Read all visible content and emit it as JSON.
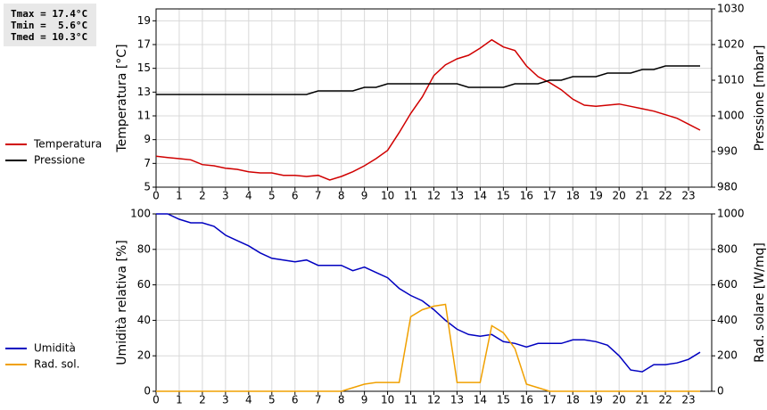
{
  "chart_data": [
    {
      "type": "line",
      "annotations": [
        "Tmax = 17.4°C",
        "Tmin =  5.6°C",
        "Tmed = 10.3°C"
      ],
      "ylabel": "Temperatura [°C]",
      "y2label": "Pressione [mbar]",
      "x": [
        0,
        0.5,
        1,
        1.5,
        2,
        2.5,
        3,
        3.5,
        4,
        4.5,
        5,
        5.5,
        6,
        6.5,
        7,
        7.5,
        8,
        8.5,
        9,
        9.5,
        10,
        10.5,
        11,
        11.5,
        12,
        12.5,
        13,
        13.5,
        14,
        14.5,
        15,
        15.5,
        16,
        16.5,
        17,
        17.5,
        18,
        18.5,
        19,
        19.5,
        20,
        20.5,
        21,
        21.5,
        22,
        22.5,
        23,
        23.5
      ],
      "xlim": [
        0,
        24
      ],
      "xticks": [
        0,
        1,
        2,
        3,
        4,
        5,
        6,
        7,
        8,
        9,
        10,
        11,
        12,
        13,
        14,
        15,
        16,
        17,
        18,
        19,
        20,
        21,
        22,
        23
      ],
      "ylim": [
        5,
        20
      ],
      "yticks": [
        5,
        7,
        9,
        11,
        13,
        15,
        17,
        19
      ],
      "y2lim": [
        980,
        1030
      ],
      "y2ticks": [
        980,
        990,
        1000,
        1010,
        1020,
        1030
      ],
      "grid": true,
      "legend": "left",
      "series": [
        {
          "name": "Temperatura",
          "color": "#d00000",
          "values": [
            7.6,
            7.5,
            7.4,
            7.3,
            6.9,
            6.8,
            6.6,
            6.5,
            6.3,
            6.2,
            6.2,
            6.0,
            6.0,
            5.9,
            6.0,
            5.6,
            5.9,
            6.3,
            6.8,
            7.4,
            8.1,
            9.6,
            11.2,
            12.6,
            14.4,
            15.3,
            15.8,
            16.1,
            16.7,
            17.4,
            16.8,
            16.5,
            15.2,
            14.3,
            13.8,
            13.2,
            12.4,
            11.9,
            11.8,
            11.9,
            12.0,
            11.8,
            11.6,
            11.4,
            11.1,
            10.8,
            10.3,
            9.8
          ]
        },
        {
          "name": "Pressione",
          "color": "#000000",
          "axis": "y2",
          "values": [
            1006,
            1006,
            1006,
            1006,
            1006,
            1006,
            1006,
            1006,
            1006,
            1006,
            1006,
            1006,
            1006,
            1006,
            1007,
            1007,
            1007,
            1007,
            1008,
            1008,
            1009,
            1009,
            1009,
            1009,
            1009,
            1009,
            1009,
            1008,
            1008,
            1008,
            1008,
            1009,
            1009,
            1009,
            1010,
            1010,
            1011,
            1011,
            1011,
            1012,
            1012,
            1012,
            1013,
            1013,
            1014,
            1014,
            1014,
            1014
          ]
        }
      ]
    },
    {
      "type": "line",
      "ylabel": "Umidità relativa [%]",
      "y2label": "Rad. solare [W/mq]",
      "x": [
        0,
        0.5,
        1,
        1.5,
        2,
        2.5,
        3,
        3.5,
        4,
        4.5,
        5,
        5.5,
        6,
        6.5,
        7,
        7.5,
        8,
        8.5,
        9,
        9.5,
        10,
        10.5,
        11,
        11.5,
        12,
        12.5,
        13,
        13.5,
        14,
        14.5,
        15,
        15.5,
        16,
        16.5,
        17,
        17.5,
        18,
        18.5,
        19,
        19.5,
        20,
        20.5,
        21,
        21.5,
        22,
        22.5,
        23,
        23.5
      ],
      "xlim": [
        0,
        24
      ],
      "xticks": [
        0,
        1,
        2,
        3,
        4,
        5,
        6,
        7,
        8,
        9,
        10,
        11,
        12,
        13,
        14,
        15,
        16,
        17,
        18,
        19,
        20,
        21,
        22,
        23
      ],
      "ylim": [
        0,
        100
      ],
      "yticks": [
        0,
        20,
        40,
        60,
        80,
        100
      ],
      "y2lim": [
        0,
        1000
      ],
      "y2ticks": [
        0,
        200,
        400,
        600,
        800,
        1000
      ],
      "grid": true,
      "legend": "left",
      "series": [
        {
          "name": "Umidità",
          "color": "#0000c0",
          "values": [
            100,
            100,
            97,
            95,
            95,
            93,
            88,
            85,
            82,
            78,
            75,
            74,
            73,
            74,
            71,
            71,
            71,
            68,
            70,
            67,
            64,
            58,
            54,
            51,
            46,
            40,
            35,
            32,
            31,
            32,
            28,
            27,
            25,
            27,
            27,
            27,
            29,
            29,
            28,
            26,
            20,
            12,
            11,
            15,
            15,
            16,
            18,
            22
          ]
        },
        {
          "name": "Rad. sol.",
          "color": "#f0a000",
          "axis": "y2",
          "values": [
            0,
            0,
            0,
            0,
            0,
            0,
            0,
            0,
            0,
            0,
            0,
            0,
            0,
            0,
            0,
            0,
            0,
            20,
            40,
            50,
            50,
            50,
            420,
            460,
            480,
            490,
            50,
            50,
            50,
            370,
            330,
            240,
            40,
            20,
            0,
            0,
            0,
            0,
            0,
            0,
            0,
            0,
            0,
            0,
            0,
            0,
            0,
            0
          ]
        }
      ]
    }
  ]
}
